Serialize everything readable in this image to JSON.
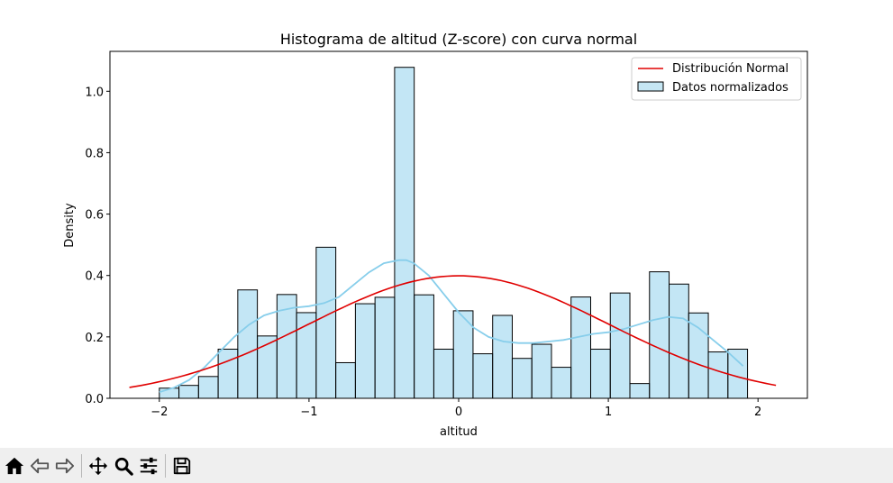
{
  "chart_data": {
    "type": "histogram",
    "title": "Histograma de altitud (Z-score) con curva normal",
    "xlabel": "altitud",
    "ylabel": "Density",
    "xlim": [
      -2.33,
      2.33
    ],
    "ylim": [
      0,
      1.13
    ],
    "xticks": [
      -2,
      -1,
      0,
      1,
      2
    ],
    "xtick_labels": [
      "−2",
      "−1",
      "0",
      "1",
      "2"
    ],
    "yticks": [
      0.0,
      0.2,
      0.4,
      0.6,
      0.8,
      1.0
    ],
    "ytick_labels": [
      "0.0",
      "0.2",
      "0.4",
      "0.6",
      "0.8",
      "1.0"
    ],
    "legend_position": "top-right",
    "bins": {
      "start": -2.0,
      "width": 0.131,
      "densities": [
        0.033,
        0.042,
        0.071,
        0.16,
        0.353,
        0.203,
        0.338,
        0.279,
        0.492,
        0.116,
        0.308,
        0.329,
        1.078,
        0.337,
        0.16,
        0.285,
        0.145,
        0.27,
        0.13,
        0.176,
        0.101,
        0.33,
        0.16,
        0.343,
        0.048,
        0.412,
        0.372,
        0.278,
        0.151,
        0.16
      ]
    },
    "series": [
      {
        "name": "Distribución Normal",
        "kind": "line",
        "color": "#e00000",
        "x_range": [
          -2.2,
          2.12
        ],
        "mean": 0,
        "std": 1
      },
      {
        "name": "Datos normalizados",
        "kind": "bar",
        "color": "#87ceeb"
      },
      {
        "kind": "kde",
        "color": "#87ceeb",
        "x": [
          -2.0,
          -1.9,
          -1.8,
          -1.7,
          -1.6,
          -1.5,
          -1.4,
          -1.3,
          -1.2,
          -1.1,
          -1.0,
          -0.9,
          -0.8,
          -0.7,
          -0.6,
          -0.5,
          -0.4,
          -0.35,
          -0.3,
          -0.2,
          -0.1,
          0.0,
          0.1,
          0.2,
          0.3,
          0.4,
          0.5,
          0.6,
          0.7,
          0.8,
          0.9,
          1.0,
          1.1,
          1.2,
          1.3,
          1.4,
          1.5,
          1.6,
          1.7,
          1.8,
          1.9
        ],
        "y": [
          0.02,
          0.035,
          0.06,
          0.1,
          0.15,
          0.2,
          0.24,
          0.27,
          0.285,
          0.295,
          0.3,
          0.31,
          0.33,
          0.37,
          0.41,
          0.44,
          0.45,
          0.45,
          0.44,
          0.4,
          0.34,
          0.28,
          0.23,
          0.2,
          0.185,
          0.18,
          0.18,
          0.185,
          0.19,
          0.2,
          0.21,
          0.215,
          0.225,
          0.24,
          0.255,
          0.265,
          0.26,
          0.23,
          0.19,
          0.15,
          0.105
        ]
      }
    ]
  },
  "toolbar": {
    "buttons": [
      {
        "name": "home-icon"
      },
      {
        "name": "back-icon"
      },
      {
        "name": "forward-icon"
      },
      {
        "name": "pan-icon"
      },
      {
        "name": "zoom-icon"
      },
      {
        "name": "configure-subplots-icon"
      },
      {
        "name": "save-icon"
      }
    ]
  }
}
